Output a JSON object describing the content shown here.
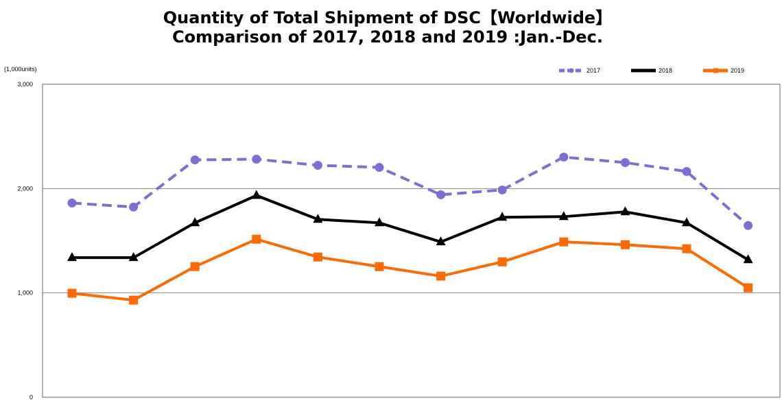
{
  "chart_data": {
    "type": "line",
    "title": "Quantity of Total Shipment of DSC【Worldwide】",
    "subtitle": "Comparison of 2017, 2018 and 2019 :Jan.-Dec.",
    "unit_label": "(1,000units)",
    "ylim": [
      0,
      3000
    ],
    "yticks": [
      "0",
      "1,000",
      "2,000",
      "3,000"
    ],
    "x": [
      1,
      2,
      3,
      4,
      5,
      6,
      7,
      8,
      9,
      10,
      11,
      12
    ],
    "grid": true,
    "legend_position": "top-right",
    "series": [
      {
        "name": "2017",
        "color": "#7b6fd6",
        "style": "dashed",
        "marker": "circle",
        "values": [
          1862,
          1823,
          2275,
          2282,
          2223,
          2203,
          1941,
          1987,
          2302,
          2249,
          2164,
          1646
        ]
      },
      {
        "name": "2018",
        "color": "#000000",
        "style": "solid",
        "marker": "triangle",
        "values": [
          1338,
          1338,
          1672,
          1934,
          1705,
          1672,
          1489,
          1725,
          1731,
          1777,
          1672,
          1318
        ]
      },
      {
        "name": "2019",
        "color": "#ff6a00",
        "style": "solid",
        "marker": "square",
        "values": [
          997,
          931,
          1252,
          1515,
          1344,
          1252,
          1161,
          1298,
          1489,
          1462,
          1423,
          1049
        ]
      }
    ]
  }
}
